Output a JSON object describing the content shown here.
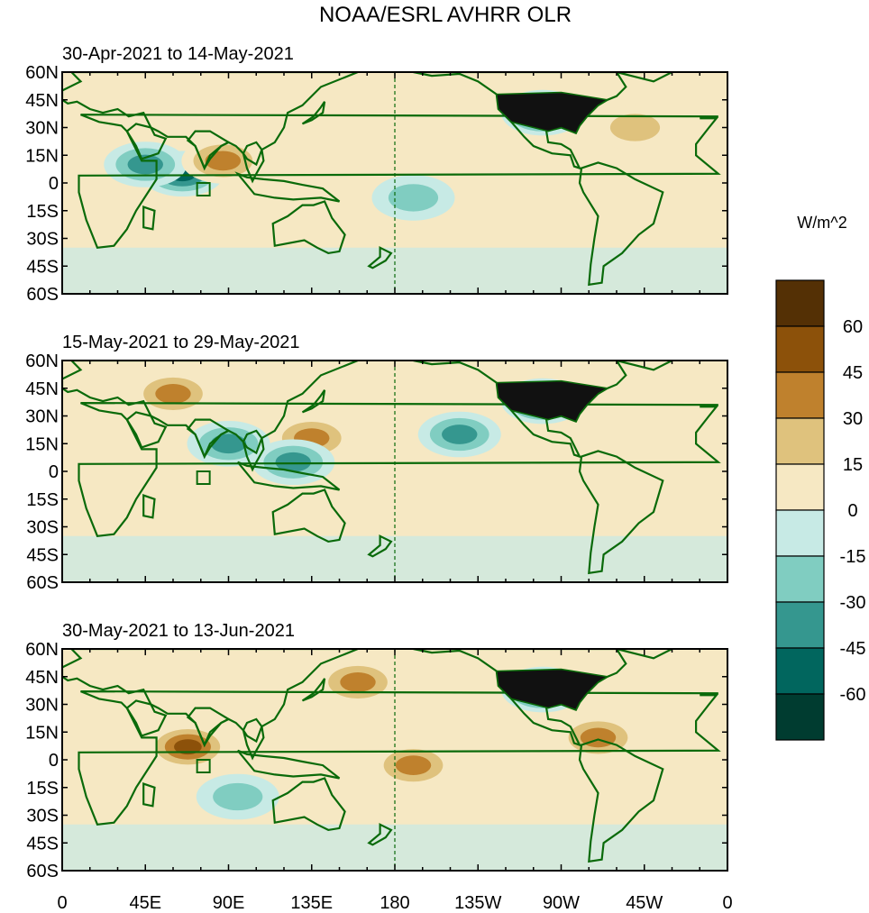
{
  "title": "NOAA/ESRL AVHRR OLR",
  "colorbar": {
    "unit_label": "W/m^2",
    "tick_labels": [
      "60",
      "45",
      "30",
      "15",
      "0",
      "-15",
      "-30",
      "-45",
      "-60"
    ],
    "levels_top_to_bottom": [
      {
        "range": "> 60",
        "color": "#543005"
      },
      {
        "range": "45 to 60",
        "color": "#8c510a"
      },
      {
        "range": "30 to 45",
        "color": "#bf812d"
      },
      {
        "range": "15 to 30",
        "color": "#dfc27d"
      },
      {
        "range": "0 to 15",
        "color": "#f6e8c3"
      },
      {
        "range": "-15 to 0",
        "color": "#c7eae5"
      },
      {
        "range": "-30 to -15",
        "color": "#80cdc1"
      },
      {
        "range": "-45 to -30",
        "color": "#35978f"
      },
      {
        "range": "-60 to -45",
        "color": "#01665e"
      },
      {
        "range": "< -60",
        "color": "#003c30"
      }
    ]
  },
  "axes": {
    "lat_labels": [
      "60N",
      "45N",
      "30N",
      "15N",
      "0",
      "15S",
      "30S",
      "45S",
      "60S"
    ],
    "lon_labels": [
      "0",
      "45E",
      "90E",
      "135E",
      "180",
      "135W",
      "90W",
      "45W",
      "0"
    ]
  },
  "chart_data": [
    {
      "type": "heatmap",
      "title": "30-Apr-2021 to 14-May-2021",
      "variable": "OLR anomaly (W/m^2)",
      "lat_range": [
        -60,
        60
      ],
      "lon_range": [
        0,
        360
      ],
      "features": [
        {
          "region": "Arabian Sea / equatorial western Indian Ocean",
          "lon": 65,
          "lat": 5,
          "anomaly": -55
        },
        {
          "region": "East Africa / Horn of Africa",
          "lon": 45,
          "lat": 10,
          "anomaly": -40
        },
        {
          "region": "Bay of Bengal",
          "lon": 87,
          "lat": 12,
          "anomaly": 30
        },
        {
          "region": "Contiguous United States",
          "lon": 260,
          "lat": 38,
          "anomaly": -70
        },
        {
          "region": "North Atlantic",
          "lon": 310,
          "lat": 30,
          "anomaly": 20
        },
        {
          "region": "Tropical Pacific near dateline",
          "lon": 190,
          "lat": -8,
          "anomaly": -25
        }
      ]
    },
    {
      "type": "heatmap",
      "title": "15-May-2021 to 29-May-2021",
      "variable": "OLR anomaly (W/m^2)",
      "lat_range": [
        -60,
        60
      ],
      "lon_range": [
        0,
        360
      ],
      "features": [
        {
          "region": "Central Asia / Middle East",
          "lon": 60,
          "lat": 42,
          "anomaly": 30
        },
        {
          "region": "Western North Pacific",
          "lon": 135,
          "lat": 18,
          "anomaly": 30
        },
        {
          "region": "Bay of Bengal",
          "lon": 90,
          "lat": 15,
          "anomaly": -35
        },
        {
          "region": "Maritime Continent / Philippines",
          "lon": 125,
          "lat": 5,
          "anomaly": -35
        },
        {
          "region": "Contiguous United States",
          "lon": 260,
          "lat": 38,
          "anomaly": -70
        },
        {
          "region": "Eastern North Pacific",
          "lon": 215,
          "lat": 20,
          "anomaly": -40
        }
      ]
    },
    {
      "type": "heatmap",
      "title": "30-May-2021 to 13-Jun-2021",
      "variable": "OLR anomaly (W/m^2)",
      "lat_range": [
        -60,
        60
      ],
      "lon_range": [
        0,
        360
      ],
      "features": [
        {
          "region": "Arabian Sea",
          "lon": 68,
          "lat": 7,
          "anomaly": 55
        },
        {
          "region": "Central Pacific near dateline",
          "lon": 190,
          "lat": -3,
          "anomaly": 35
        },
        {
          "region": "North Pacific",
          "lon": 160,
          "lat": 42,
          "anomaly": 30
        },
        {
          "region": "Contiguous United States",
          "lon": 260,
          "lat": 38,
          "anomaly": -70
        },
        {
          "region": "Caribbean",
          "lon": 290,
          "lat": 12,
          "anomaly": 30
        },
        {
          "region": "Southern Indian Ocean",
          "lon": 95,
          "lat": -20,
          "anomaly": -25
        }
      ]
    }
  ]
}
